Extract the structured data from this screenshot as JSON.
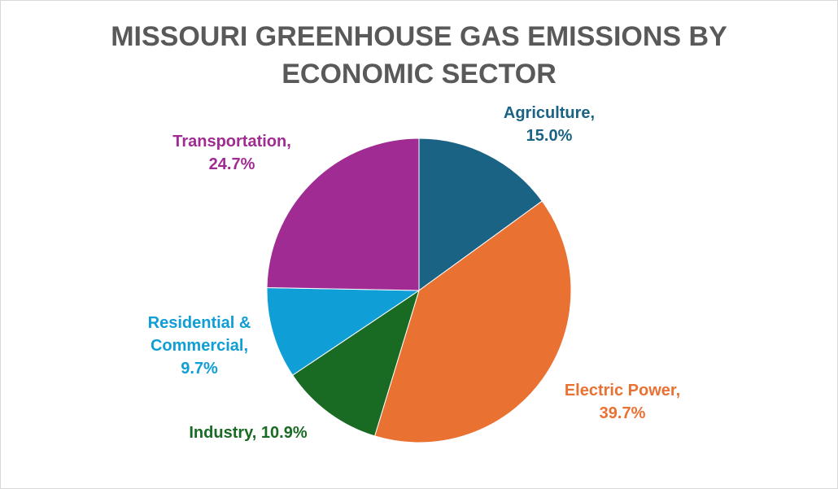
{
  "chart_data": {
    "type": "pie",
    "title_lines": [
      "MISSOURI GREENHOUSE GAS EMISSIONS BY",
      "ECONOMIC SECTOR"
    ],
    "slices": [
      {
        "name": "Agriculture",
        "value": 15.0,
        "label_lines": [
          "Agriculture,",
          "15.0%"
        ],
        "color": "#1a6385"
      },
      {
        "name": "Electric Power",
        "value": 39.7,
        "label_lines": [
          "Electric Power,",
          "39.7%"
        ],
        "color": "#e97132"
      },
      {
        "name": "Industry",
        "value": 10.9,
        "label_lines": [
          "Industry, 10.9%"
        ],
        "color": "#196b24"
      },
      {
        "name": "Residential & Commercial",
        "value": 9.7,
        "label_lines": [
          "Residential &",
          "Commercial,",
          "9.7%"
        ],
        "color": "#0f9ed5"
      },
      {
        "name": "Transportation",
        "value": 24.7,
        "label_lines": [
          "Transportation,",
          "24.7%"
        ],
        "color": "#a02b93"
      }
    ],
    "legend": "none"
  }
}
